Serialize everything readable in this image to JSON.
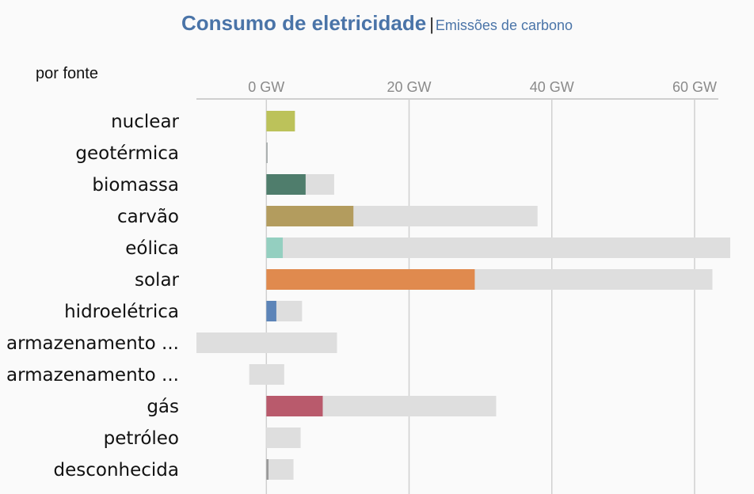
{
  "header": {
    "active_tab": "Consumo de eletricidade",
    "separator": "|",
    "inactive_tab": "Emissões de carbono"
  },
  "subtitle": "por fonte",
  "chart_data": {
    "type": "bar",
    "orientation": "horizontal",
    "unit": "GW",
    "x_ticks": [
      {
        "value": 0,
        "label": "0 GW"
      },
      {
        "value": 20,
        "label": "20 GW"
      },
      {
        "value": 40,
        "label": "40 GW"
      },
      {
        "value": 60,
        "label": "60 GW"
      }
    ],
    "xlim": [
      -9.8,
      65
    ],
    "grid": true,
    "categories": [
      {
        "label": "nuclear",
        "value": 4.0,
        "range": [
          0,
          4.0
        ],
        "color": "#bcc25a"
      },
      {
        "label": "geotérmica",
        "value": 0.1,
        "range": [
          0,
          0.1
        ],
        "color": "#9aa0a0"
      },
      {
        "label": "biomassa",
        "value": 5.5,
        "range": [
          0,
          9.5
        ],
        "color": "#4f7d6c"
      },
      {
        "label": "carvão",
        "value": 12.2,
        "range": [
          0,
          38.0
        ],
        "color": "#b39c5e"
      },
      {
        "label": "eólica",
        "value": 2.3,
        "range": [
          0,
          65.0
        ],
        "color": "#94cfc0"
      },
      {
        "label": "solar",
        "value": 29.2,
        "range": [
          0,
          62.5
        ],
        "color": "#e08a4e"
      },
      {
        "label": "hidroelétrica",
        "value": 1.4,
        "range": [
          0,
          5.0
        ],
        "color": "#5c84b8"
      },
      {
        "label": "armazenamento ...",
        "value": 0,
        "range": [
          -9.8,
          9.9
        ],
        "color": "#cccccc"
      },
      {
        "label": "armazenamento ...",
        "value": 0,
        "range": [
          -2.4,
          2.5
        ],
        "color": "#cccccc"
      },
      {
        "label": "gás",
        "value": 7.9,
        "range": [
          0,
          32.2
        ],
        "color": "#b95a6c"
      },
      {
        "label": "petróleo",
        "value": 0,
        "range": [
          0,
          4.8
        ],
        "color": "#cccccc"
      },
      {
        "label": "desconhecida",
        "value": 0.3,
        "range": [
          0,
          3.8
        ],
        "color": "#999999"
      }
    ]
  }
}
